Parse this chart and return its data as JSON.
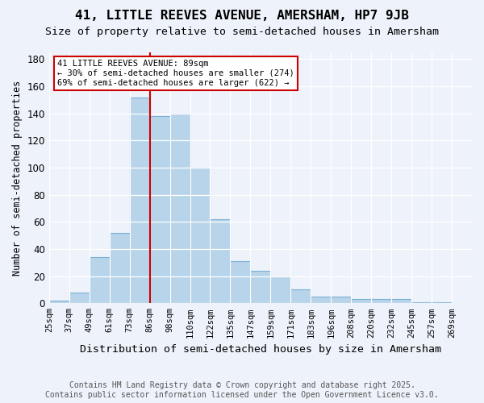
{
  "title": "41, LITTLE REEVES AVENUE, AMERSHAM, HP7 9JB",
  "subtitle": "Size of property relative to semi-detached houses in Amersham",
  "xlabel": "Distribution of semi-detached houses by size in Amersham",
  "ylabel": "Number of semi-detached properties",
  "bar_labels": [
    "25sqm",
    "37sqm",
    "49sqm",
    "61sqm",
    "73sqm",
    "86sqm",
    "98sqm",
    "110sqm",
    "122sqm",
    "135sqm",
    "147sqm",
    "159sqm",
    "171sqm",
    "183sqm",
    "196sqm",
    "208sqm",
    "220sqm",
    "232sqm",
    "245sqm",
    "257sqm",
    "269sqm"
  ],
  "bar_heights": [
    2,
    8,
    34,
    52,
    152,
    138,
    140,
    100,
    62,
    31,
    24,
    20,
    10,
    5,
    5,
    3,
    3,
    3,
    1,
    1
  ],
  "bar_color": "#b8d4ea",
  "bar_edge_color": "#7ab0d4",
  "background_color": "#eef2fa",
  "grid_color": "#ffffff",
  "vline_color": "#cc0000",
  "vline_x": 5.0,
  "annotation_box_edge": "#cc0000",
  "annotation_box_face": "#ffffff",
  "property_label": "41 LITTLE REEVES AVENUE: 89sqm",
  "pct_smaller": 30,
  "n_smaller": 274,
  "pct_larger": 69,
  "n_larger": 622,
  "footer_line1": "Contains HM Land Registry data © Crown copyright and database right 2025.",
  "footer_line2": "Contains public sector information licensed under the Open Government Licence v3.0.",
  "ylim": [
    0,
    185
  ],
  "title_fontsize": 11.5,
  "subtitle_fontsize": 9.5,
  "xlabel_fontsize": 9.5,
  "ylabel_fontsize": 8.5,
  "tick_fontsize": 7.5,
  "annot_fontsize": 7.5,
  "footer_fontsize": 7
}
